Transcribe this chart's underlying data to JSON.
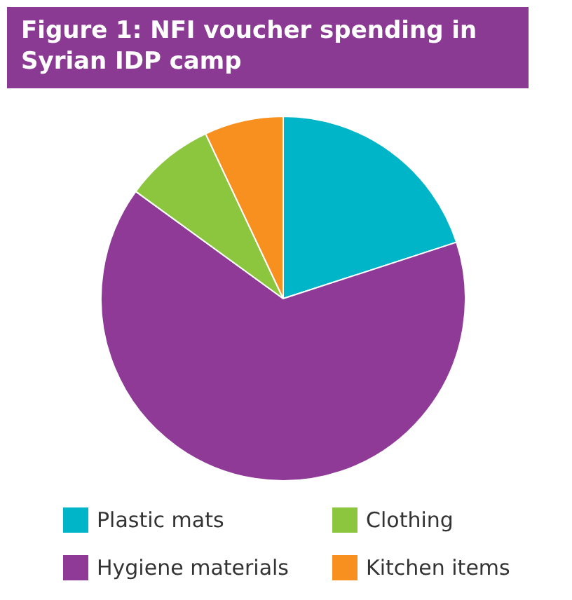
{
  "chart_data": {
    "type": "pie",
    "title": "Figure 1: NFI voucher spending in Syrian IDP camp",
    "categories": [
      "Plastic mats",
      "Hygiene materials",
      "Clothing",
      "Kitchen items"
    ],
    "values": [
      20,
      65,
      8,
      7
    ],
    "colors": [
      "#00b5c8",
      "#8e3a96",
      "#8cc63f",
      "#f7901e"
    ],
    "legend": "bottom"
  }
}
